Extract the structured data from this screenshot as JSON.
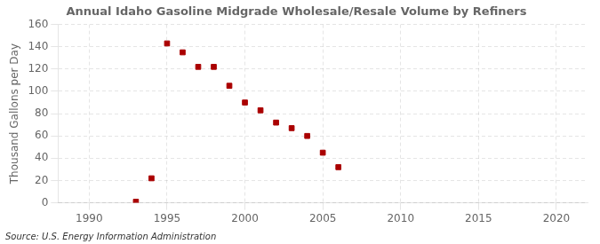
{
  "chart_data": {
    "type": "scatter",
    "title": "Annual Idaho Gasoline Midgrade Wholesale/Resale Volume by Refiners",
    "ylabel": "Thousand Gallons per Day",
    "annotation": "Source: U.S. Energy Information Administration",
    "x": [
      1993,
      1994,
      1995,
      1996,
      1997,
      1998,
      1999,
      2000,
      2001,
      2002,
      2003,
      2004,
      2005,
      2006
    ],
    "values": [
      1,
      22,
      143,
      135,
      122,
      122,
      105,
      90,
      83,
      72,
      67,
      60,
      45,
      32
    ],
    "color": "#aa0000",
    "marker": "square",
    "xlim": [
      1988,
      2022
    ],
    "ylim": [
      0,
      160
    ],
    "xticks": [
      1990,
      1995,
      2000,
      2005,
      2010,
      2015,
      2020
    ],
    "yticks": [
      0,
      20,
      40,
      60,
      80,
      100,
      120,
      140,
      160
    ],
    "grid": true
  }
}
